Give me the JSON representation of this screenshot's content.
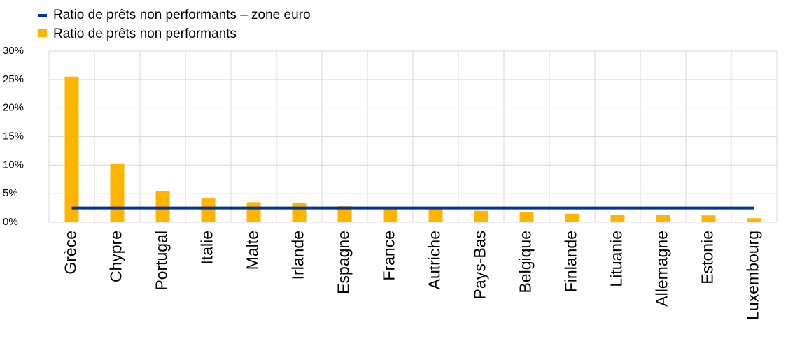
{
  "chart_data": {
    "type": "bar",
    "categories": [
      "Grèce",
      "Chypre",
      "Portugal",
      "Italie",
      "Malte",
      "Irlande",
      "Espagne",
      "France",
      "Autriche",
      "Pays-Bas",
      "Belgique",
      "Finlande",
      "Lituanie",
      "Allemagne",
      "Estonie",
      "Luxembourg"
    ],
    "series": [
      {
        "name": "Ratio de prêts non performants – zone euro",
        "type": "line",
        "color": "#003299",
        "values": [
          2.5,
          2.5,
          2.5,
          2.5,
          2.5,
          2.5,
          2.5,
          2.5,
          2.5,
          2.5,
          2.5,
          2.5,
          2.5,
          2.5,
          2.5,
          2.5
        ]
      },
      {
        "name": "Ratio de prêts non performants",
        "type": "bar",
        "color": "#ffb400",
        "values": [
          25.5,
          10.3,
          5.5,
          4.2,
          3.5,
          3.3,
          2.8,
          2.6,
          2.4,
          2.0,
          1.8,
          1.5,
          1.3,
          1.3,
          1.2,
          0.7
        ]
      }
    ],
    "ylim": [
      0,
      30
    ],
    "yticks": [
      {
        "value": 0,
        "label": "0%"
      },
      {
        "value": 5,
        "label": "5%"
      },
      {
        "value": 10,
        "label": "10%"
      },
      {
        "value": 15,
        "label": "15%"
      },
      {
        "value": 20,
        "label": "20%"
      },
      {
        "value": 25,
        "label": "25%"
      },
      {
        "value": 30,
        "label": "30%"
      }
    ],
    "grid": true
  }
}
